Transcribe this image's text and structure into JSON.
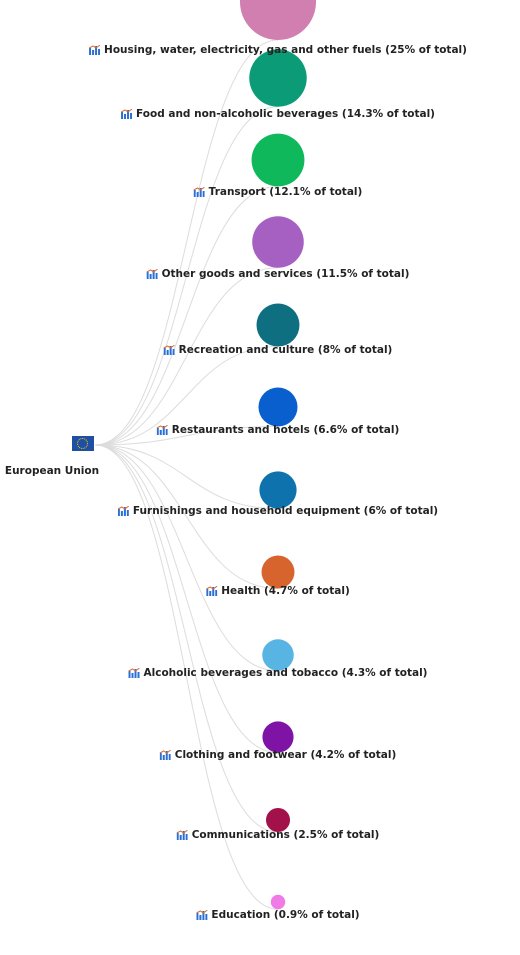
{
  "root": {
    "label": "European Union",
    "icon": "eu-flag-icon"
  },
  "items": [
    {
      "label": "Housing, water, electricity, gas and other fuels (25% of total)",
      "share": 25,
      "color": "#d17fb0"
    },
    {
      "label": "Food and non-alcoholic beverages (14.3% of total)",
      "share": 14.3,
      "color": "#0b9b76"
    },
    {
      "label": "Transport (12.1% of total)",
      "share": 12.1,
      "color": "#10b85c"
    },
    {
      "label": "Other goods and services (11.5% of total)",
      "share": 11.5,
      "color": "#a660c2"
    },
    {
      "label": "Recreation and culture (8% of total)",
      "share": 8,
      "color": "#0e6f80"
    },
    {
      "label": "Restaurants and hotels (6.6% of total)",
      "share": 6.6,
      "color": "#0a5fcf"
    },
    {
      "label": "Furnishings and household equipment (6% of total)",
      "share": 6,
      "color": "#0e72ad"
    },
    {
      "label": "Health (4.7% of total)",
      "share": 4.7,
      "color": "#d6642c"
    },
    {
      "label": "Alcoholic beverages and tobacco (4.3% of total)",
      "share": 4.3,
      "color": "#57b4e3"
    },
    {
      "label": "Clothing and footwear (4.2% of total)",
      "share": 4.2,
      "color": "#7e13a6"
    },
    {
      "label": "Communications (2.5% of total)",
      "share": 2.5,
      "color": "#a3114a"
    },
    {
      "label": "Education (0.9% of total)",
      "share": 0.9,
      "color": "#f07be6"
    }
  ],
  "item_icon": "bar-chart-icon",
  "link_color": "#dcdcdc"
}
